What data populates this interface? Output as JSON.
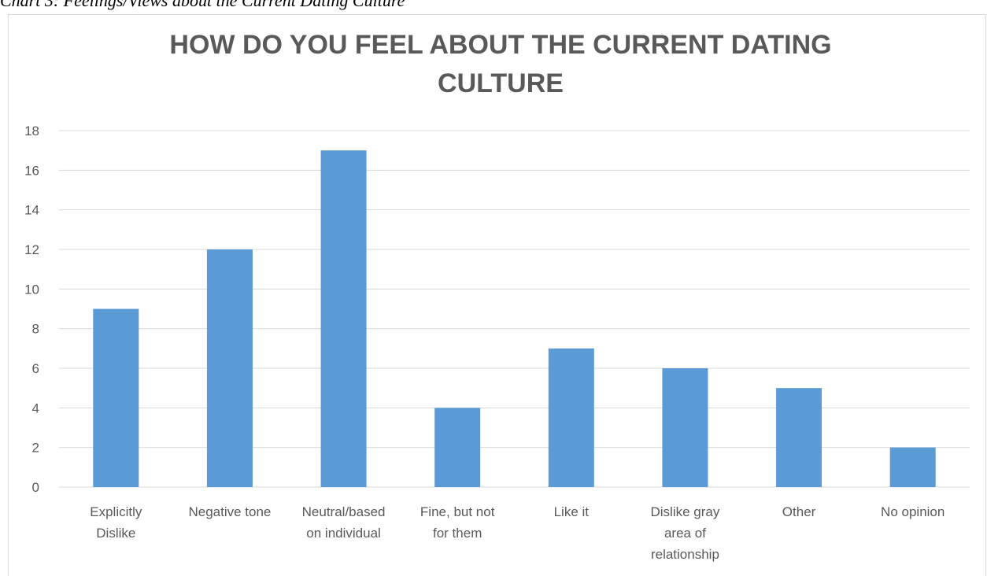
{
  "caption": "Chart 3: Feelings/Views about the Current Dating Culture",
  "chart_data": {
    "type": "bar",
    "title_lines": [
      "HOW DO YOU FEEL ABOUT THE CURRENT DATING",
      "CULTURE"
    ],
    "categories": [
      [
        "Explicitly",
        "Dislike"
      ],
      [
        "Negative tone"
      ],
      [
        "Neutral/based",
        "on individual"
      ],
      [
        "Fine, but not",
        "for them"
      ],
      [
        "Like it"
      ],
      [
        "Dislike gray",
        "area of",
        "relationship"
      ],
      [
        "Other"
      ],
      [
        "No opinion"
      ]
    ],
    "values": [
      9,
      12,
      17,
      4,
      7,
      6,
      5,
      2
    ],
    "ylim": [
      0,
      18
    ],
    "yticks": [
      "0",
      "2",
      "4",
      "6",
      "8",
      "10",
      "12",
      "14",
      "16",
      "18"
    ],
    "grid": true,
    "colors": {
      "bar": "#5b9bd5",
      "grid": "#d9d9d9",
      "text": "#595959"
    }
  }
}
